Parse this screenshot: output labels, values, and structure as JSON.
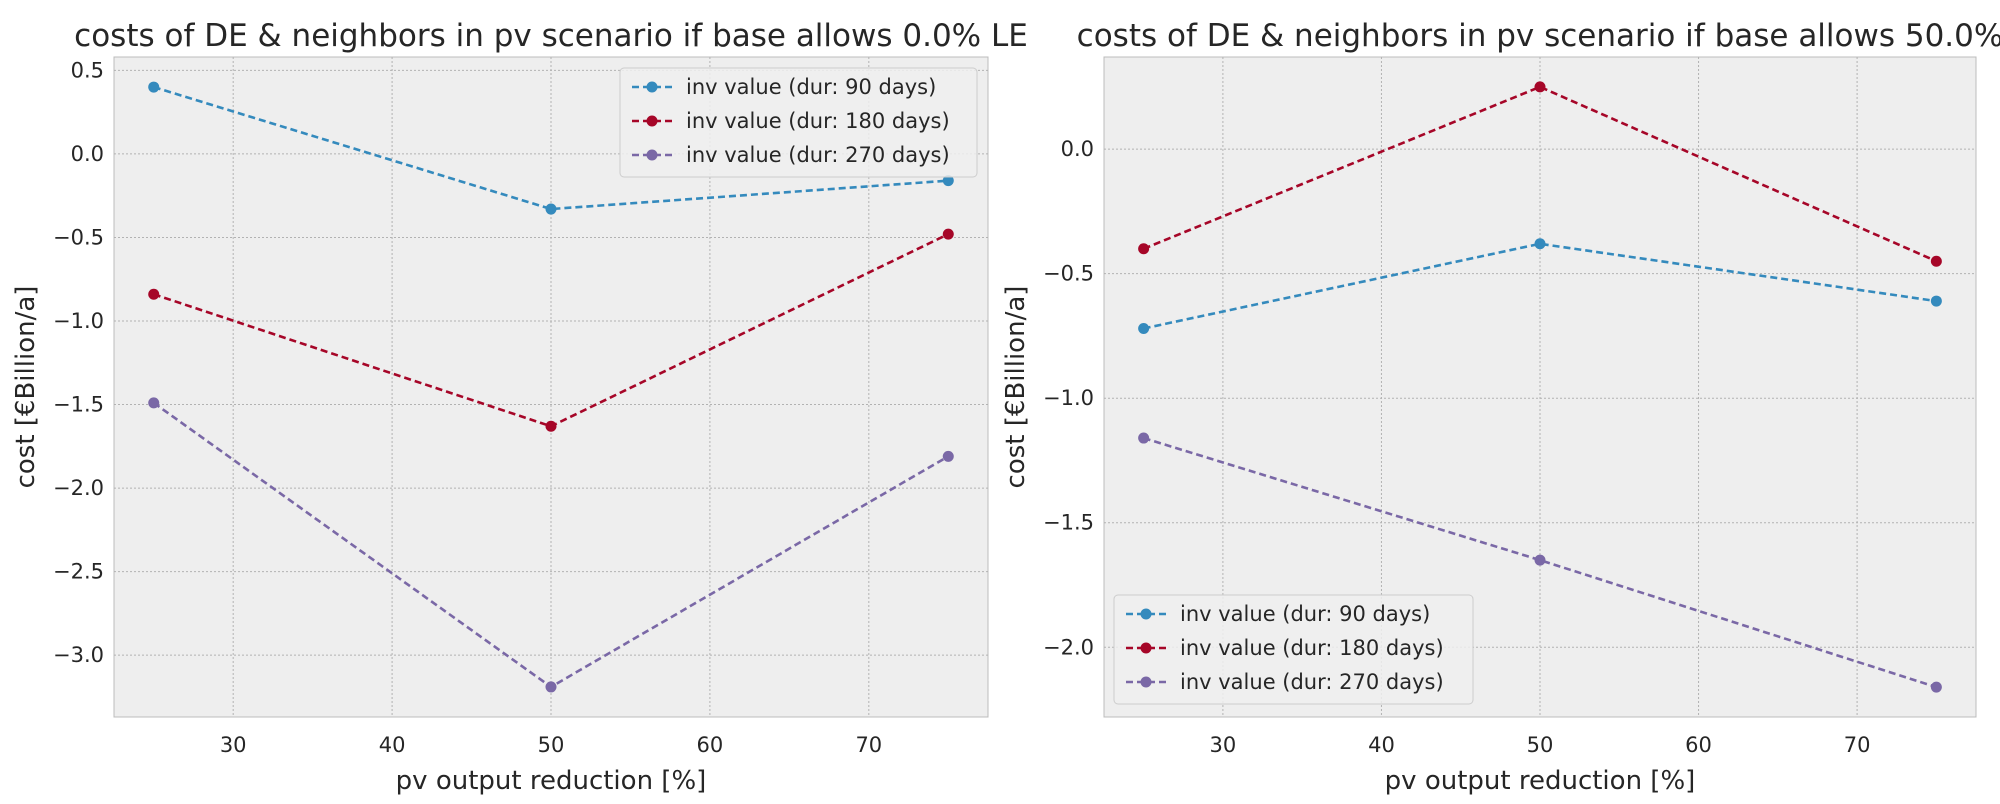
{
  "chart_data": [
    {
      "type": "line",
      "title": "costs of DE & neighbors in pv scenario if base allows 0.0% LE",
      "xlabel": "pv output reduction [%]",
      "ylabel": "cost [€Billion/a]",
      "x": [
        25,
        50,
        75
      ],
      "xlim": [
        22.5,
        77.5
      ],
      "ylim": [
        -3.37,
        0.58
      ],
      "xticks": [
        30,
        40,
        50,
        60,
        70
      ],
      "xtick_labels": [
        "30",
        "40",
        "50",
        "60",
        "70"
      ],
      "yticks": [
        0.5,
        0.0,
        -0.5,
        -1.0,
        -1.5,
        -2.0,
        -2.5,
        -3.0
      ],
      "ytick_labels": [
        "0.5",
        "0.0",
        "−0.5",
        "−1.0",
        "−1.5",
        "−2.0",
        "−2.5",
        "−3.0"
      ],
      "grid": true,
      "legend_position": "upper right",
      "series": [
        {
          "name": "inv value (dur: 90 days)",
          "color": "#348ABD",
          "values": [
            0.4,
            -0.33,
            -0.16
          ]
        },
        {
          "name": "inv value (dur: 180 days)",
          "color": "#A60628",
          "values": [
            -0.84,
            -1.63,
            -0.48
          ]
        },
        {
          "name": "inv value (dur: 270 days)",
          "color": "#7A68A6",
          "values": [
            -1.49,
            -3.19,
            -1.81
          ]
        }
      ]
    },
    {
      "type": "line",
      "title": "costs of DE & neighbors in pv scenario if base allows 50.0%",
      "xlabel": "pv output reduction [%]",
      "ylabel": "cost [€Billion/a]",
      "x": [
        25,
        50,
        75
      ],
      "xlim": [
        22.5,
        77.5
      ],
      "ylim": [
        -2.28,
        0.37
      ],
      "xticks": [
        30,
        40,
        50,
        60,
        70
      ],
      "xtick_labels": [
        "30",
        "40",
        "50",
        "60",
        "70"
      ],
      "yticks": [
        0.0,
        -0.5,
        -1.0,
        -1.5,
        -2.0
      ],
      "ytick_labels": [
        "0.0",
        "−0.5",
        "−1.0",
        "−1.5",
        "−2.0"
      ],
      "grid": true,
      "legend_position": "lower left",
      "series": [
        {
          "name": "inv value (dur: 90 days)",
          "color": "#348ABD",
          "values": [
            -0.72,
            -0.38,
            -0.61
          ]
        },
        {
          "name": "inv value (dur: 180 days)",
          "color": "#A60628",
          "values": [
            -0.4,
            0.25,
            -0.45
          ]
        },
        {
          "name": "inv value (dur: 270 days)",
          "color": "#7A68A6",
          "values": [
            -1.16,
            -1.65,
            -2.16
          ]
        }
      ]
    }
  ]
}
